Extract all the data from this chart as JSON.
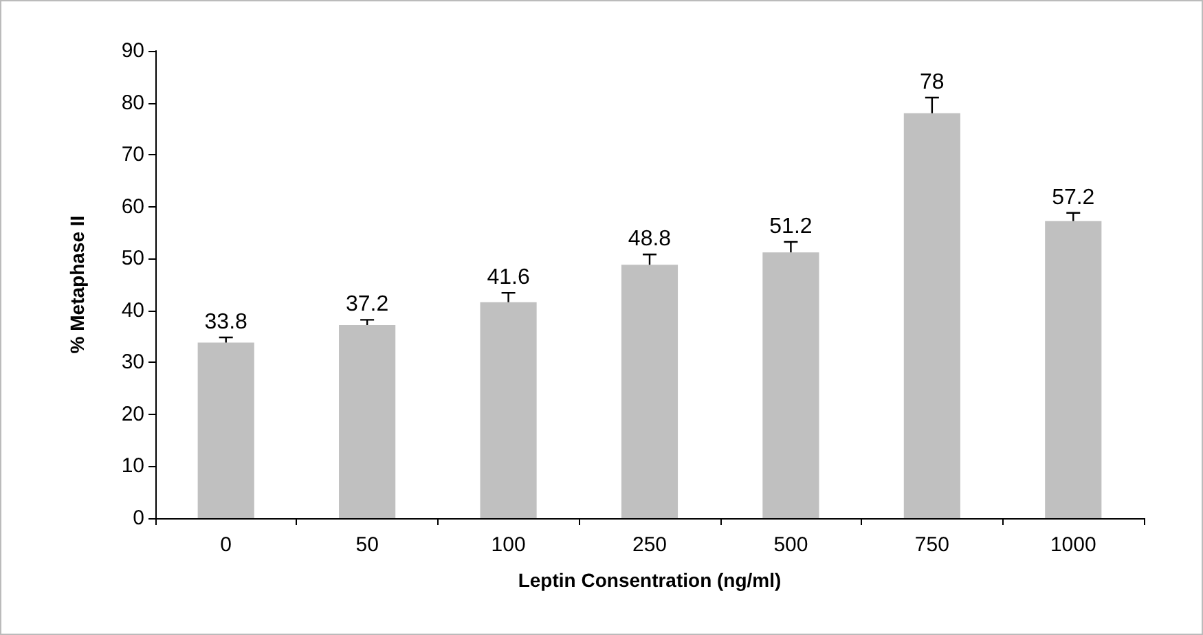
{
  "chart_data": {
    "type": "bar",
    "xlabel": "Leptin Consentration (ng/ml)",
    "ylabel": "% Metaphase II",
    "categories": [
      "0",
      "50",
      "100",
      "250",
      "500",
      "750",
      "1000"
    ],
    "values": [
      33.8,
      37.2,
      41.6,
      48.8,
      51.2,
      78,
      57.2
    ],
    "errors": [
      [
        33.8,
        34.8
      ],
      [
        37.2,
        38.2
      ],
      [
        41.6,
        43.4
      ],
      [
        48.8,
        50.8
      ],
      [
        51.2,
        53.2
      ],
      [
        78,
        81
      ],
      [
        57.2,
        58.8
      ]
    ],
    "color": "#c0c0c0",
    "data_labels": true,
    "ylim": [
      0,
      90
    ],
    "yticks": [
      0,
      10,
      20,
      30,
      40,
      50,
      60,
      70,
      80,
      90
    ]
  }
}
